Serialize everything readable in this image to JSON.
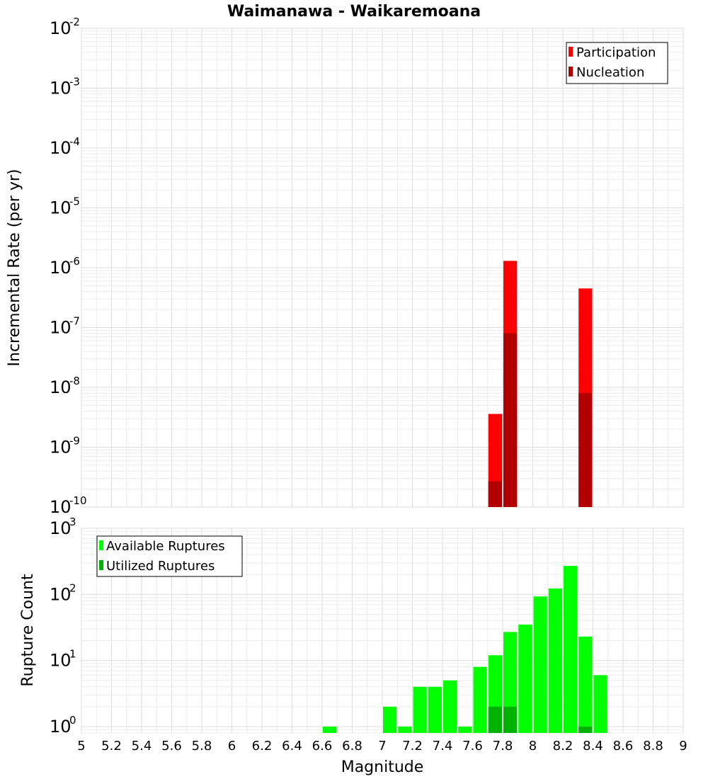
{
  "title": "Waimanawa - Waikaremoana",
  "colors": {
    "participation": "#ff0000",
    "nucleation": "#b20000",
    "available": "#00ff00",
    "utilized": "#00b200"
  },
  "chart_data": [
    {
      "type": "bar",
      "panel": "top",
      "ylabel": "Incremental Rate (per yr)",
      "yscale": "log",
      "ylim": [
        1e-10,
        0.01
      ],
      "xlim": [
        5,
        9
      ],
      "bar_width": 0.1,
      "ytick_base": "10",
      "yticks": [
        {
          "value": 0.01,
          "exp": "-2"
        },
        {
          "value": 0.001,
          "exp": "-3"
        },
        {
          "value": 0.0001,
          "exp": "-4"
        },
        {
          "value": 1e-05,
          "exp": "-5"
        },
        {
          "value": 1e-06,
          "exp": "-6"
        },
        {
          "value": 1e-07,
          "exp": "-7"
        },
        {
          "value": 1e-08,
          "exp": "-8"
        },
        {
          "value": 1e-09,
          "exp": "-9"
        },
        {
          "value": 1e-10,
          "exp": "-10"
        }
      ],
      "legend": {
        "position": "top-right",
        "entries": [
          "Participation",
          "Nucleation"
        ]
      },
      "series": [
        {
          "name": "Participation",
          "color": "#ff0000",
          "x": [
            7.75,
            7.85,
            8.35
          ],
          "values": [
            3.6e-09,
            1.3e-06,
            4.5e-07
          ]
        },
        {
          "name": "Nucleation",
          "color": "#b20000",
          "x": [
            7.75,
            7.85,
            8.35
          ],
          "values": [
            2.7e-10,
            8e-08,
            8e-09
          ]
        }
      ],
      "grid": true
    },
    {
      "type": "bar",
      "panel": "bottom",
      "ylabel": "Rupture Count",
      "xlabel": "Magnitude",
      "yscale": "log",
      "ylim": [
        0.8,
        1000
      ],
      "xlim": [
        5,
        9
      ],
      "bar_width": 0.1,
      "ytick_base": "10",
      "yticks": [
        {
          "value": 1000,
          "exp": "3"
        },
        {
          "value": 100,
          "exp": "2"
        },
        {
          "value": 10,
          "exp": "1"
        },
        {
          "value": 1,
          "exp": "0"
        }
      ],
      "xticks": [
        "5",
        "5.2",
        "5.4",
        "5.6",
        "5.8",
        "6",
        "6.2",
        "6.4",
        "6.6",
        "6.8",
        "7",
        "7.2",
        "7.4",
        "7.6",
        "7.8",
        "8",
        "8.2",
        "8.4",
        "8.6",
        "8.8",
        "9"
      ],
      "legend": {
        "position": "top-left",
        "entries": [
          "Available Ruptures",
          "Utilized Ruptures"
        ]
      },
      "series": [
        {
          "name": "Available Ruptures",
          "color": "#00ff00",
          "x": [
            6.65,
            7.05,
            7.15,
            7.25,
            7.35,
            7.45,
            7.55,
            7.65,
            7.75,
            7.85,
            7.95,
            8.05,
            8.15,
            8.25,
            8.35,
            8.45
          ],
          "values": [
            1,
            2,
            1,
            4,
            4,
            5,
            1,
            8,
            12,
            27,
            35,
            93,
            123,
            270,
            23,
            6
          ]
        },
        {
          "name": "Utilized Ruptures",
          "color": "#00b200",
          "x": [
            7.75,
            7.85,
            8.35
          ],
          "values": [
            2,
            2,
            1
          ]
        }
      ],
      "grid": true
    }
  ]
}
